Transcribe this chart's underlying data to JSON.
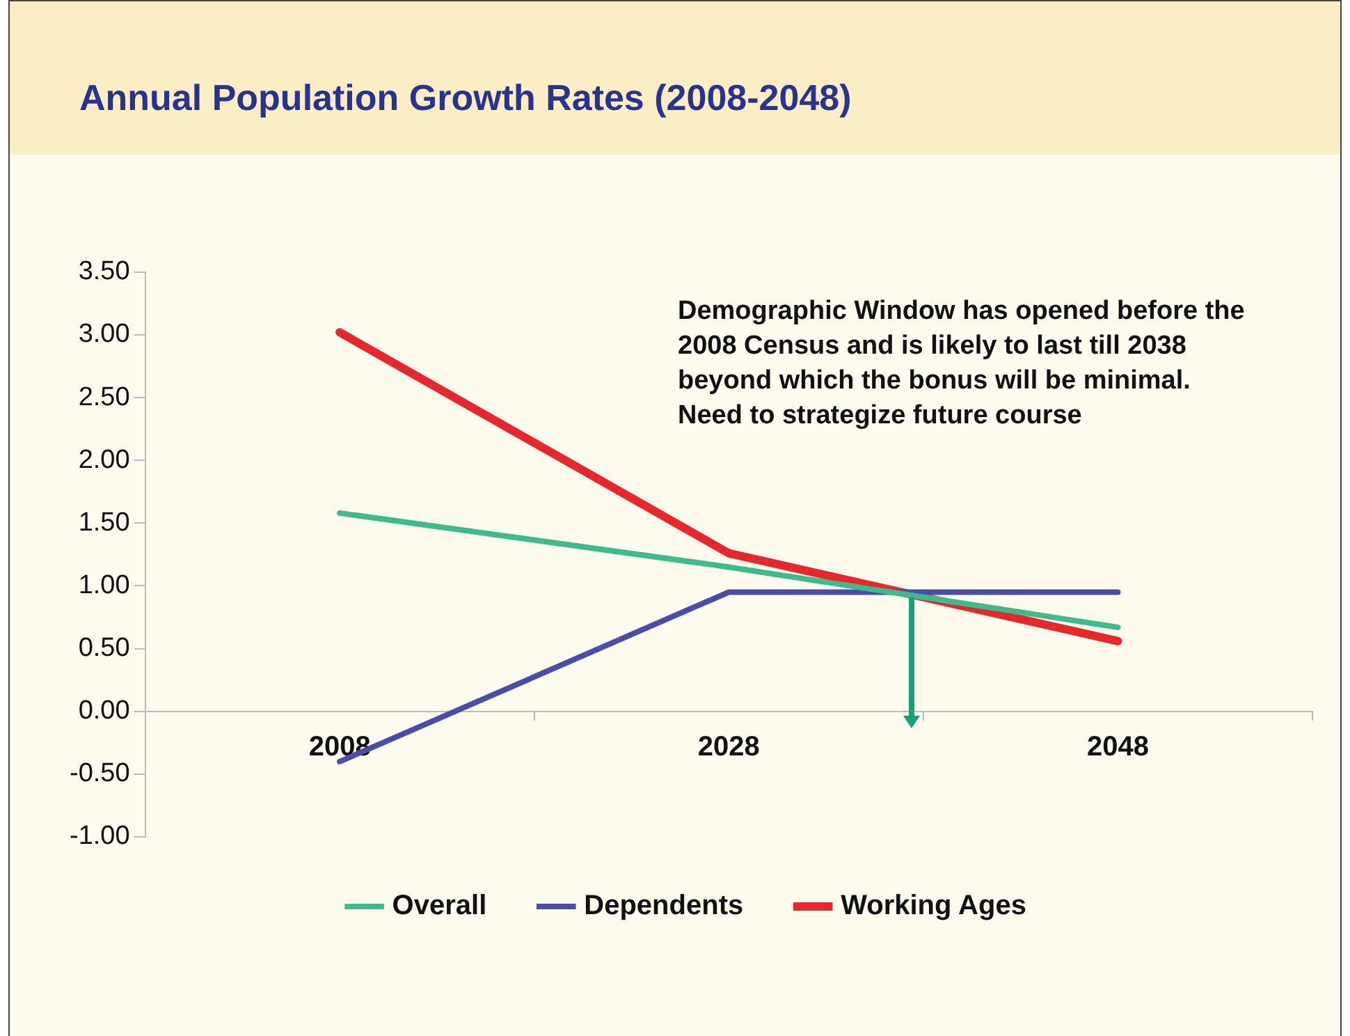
{
  "chart_data": {
    "type": "line",
    "title": "Annual Population Growth Rates (2008-2048)",
    "categories": [
      "2008",
      "2028",
      "2048"
    ],
    "series": [
      {
        "name": "Overall",
        "color": "#3dbb8a",
        "values": [
          1.58,
          1.15,
          0.67
        ]
      },
      {
        "name": "Dependents",
        "color": "#4b4bab",
        "values": [
          -0.4,
          0.95,
          0.95
        ]
      },
      {
        "name": "Working Ages",
        "color": "#e8262b",
        "values": [
          3.02,
          1.26,
          0.56
        ]
      }
    ],
    "ylim": [
      -1,
      3.5
    ],
    "yticks": [
      {
        "value": -1,
        "label": "-1.00"
      },
      {
        "value": -0.5,
        "label": "-0.50"
      },
      {
        "value": 0,
        "label": "0.00"
      },
      {
        "value": 0.5,
        "label": "0.50"
      },
      {
        "value": 1,
        "label": "1.00"
      },
      {
        "value": 1.5,
        "label": "1.50"
      },
      {
        "value": 2,
        "label": "2.00"
      },
      {
        "value": 2.5,
        "label": "2.50"
      },
      {
        "value": 3,
        "label": "3.00"
      },
      {
        "value": 3.5,
        "label": "3.50"
      }
    ],
    "annotations": [
      "Demographic Window has opened before the 2008 Census and is likely to last till 2038 beyond which the bonus will be minimal.  Need to strategize future course"
    ],
    "legend": "bottom",
    "grid": false,
    "marker": "none",
    "line_style": "solid"
  }
}
